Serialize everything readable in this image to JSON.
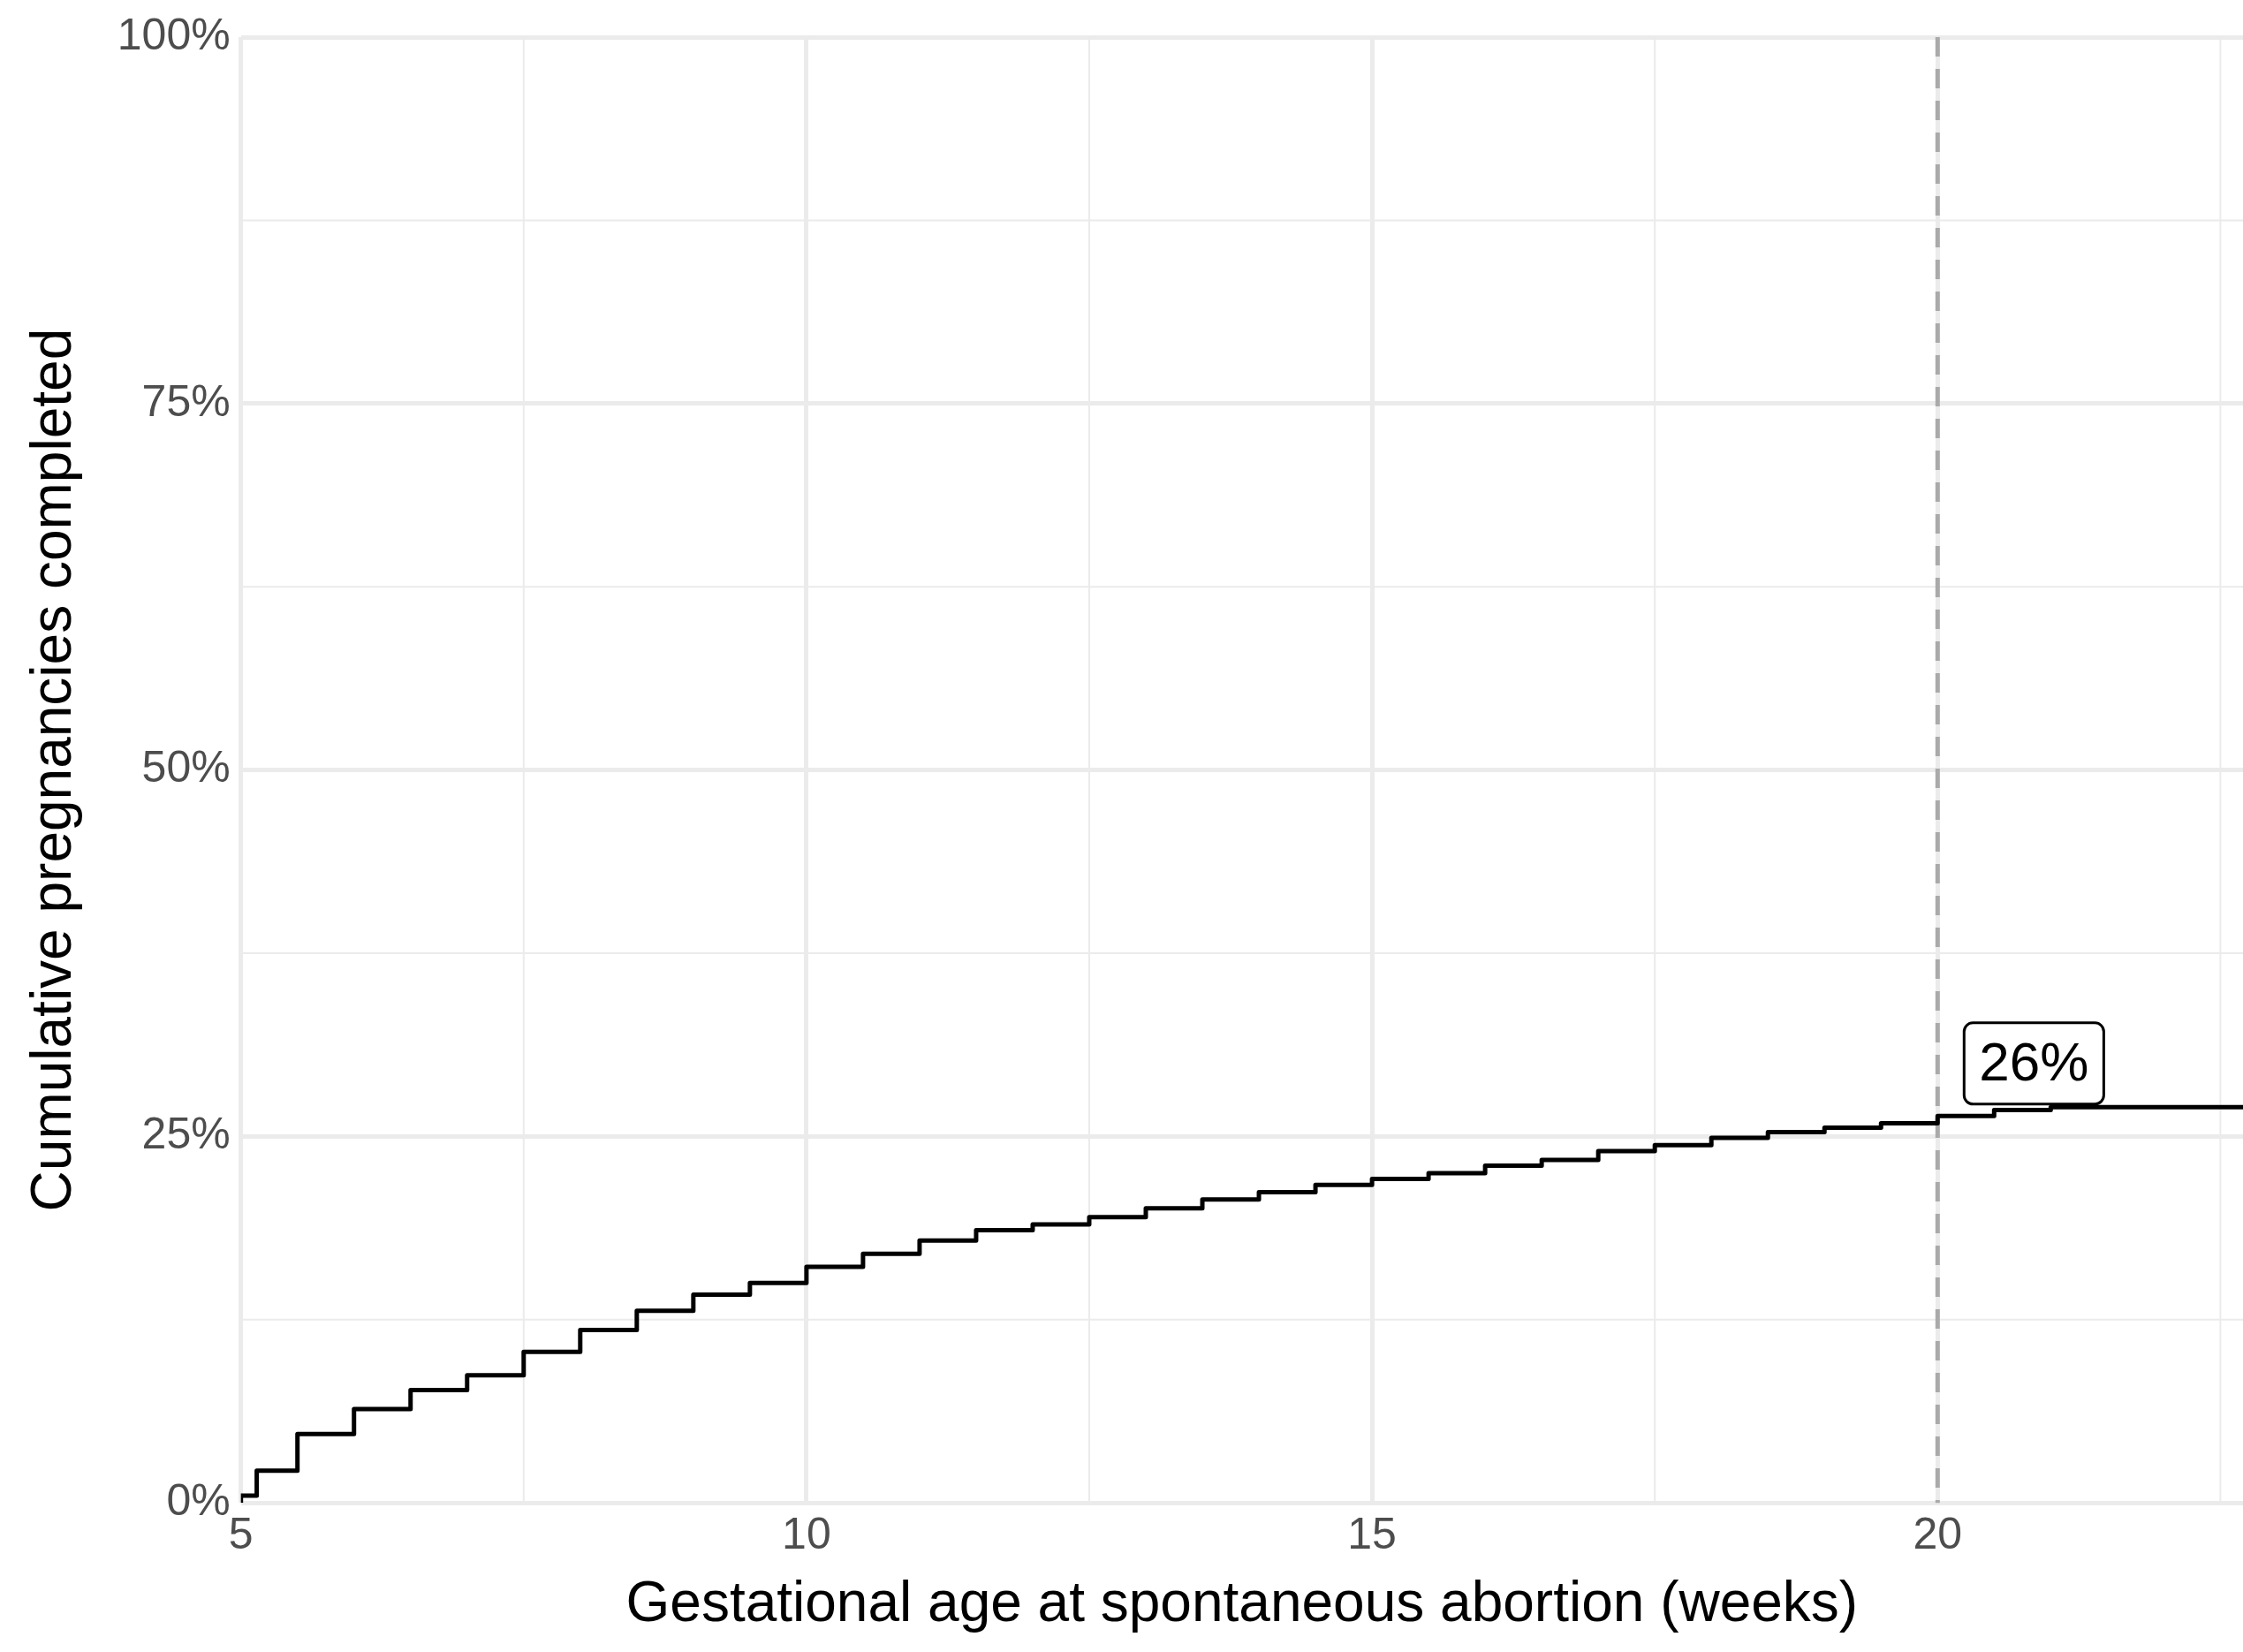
{
  "chart_data": {
    "type": "step",
    "xlabel": "Gestational age at spontaneous abortion (weeks)",
    "ylabel": "Cumulative pregnancies completed",
    "x": [
      5,
      5.14,
      5.5,
      6,
      6.5,
      7,
      7.5,
      8,
      8.5,
      9,
      9.5,
      10,
      10.5,
      11,
      11.5,
      12,
      12.5,
      13,
      13.5,
      14,
      14.5,
      15,
      15.5,
      16,
      16.5,
      17,
      17.5,
      18,
      18.5,
      19,
      19.5,
      20,
      20.5,
      21,
      21.5,
      22,
      22.7
    ],
    "series": [
      {
        "color": "#000000",
        "values": [
          0,
          0.5,
          2.2,
          4.7,
          6.4,
          7.7,
          8.7,
          10.3,
          11.8,
          13.1,
          14.2,
          15.0,
          16.1,
          17.0,
          17.9,
          18.6,
          19.0,
          19.5,
          20.1,
          20.7,
          21.2,
          21.7,
          22.1,
          22.5,
          23.0,
          23.4,
          24.0,
          24.4,
          24.9,
          25.3,
          25.6,
          25.9,
          26.4,
          26.8,
          27.0,
          27.0,
          27.0
        ]
      }
    ],
    "xlim": [
      5,
      22.7
    ],
    "ylim": [
      0,
      100
    ],
    "xticks": [
      5,
      10,
      15,
      20
    ],
    "yticks": [
      {
        "value": 0,
        "label": "0%"
      },
      {
        "value": 25,
        "label": "25%"
      },
      {
        "value": 50,
        "label": "50%"
      },
      {
        "value": 75,
        "label": "75%"
      },
      {
        "value": 100,
        "label": "100%"
      }
    ],
    "grid": true,
    "legend": false,
    "ref_lines": [
      {
        "axis": "x",
        "value": 20,
        "color": "#aaaaaa",
        "line_style": "dashed"
      }
    ],
    "annotations": [
      {
        "text": "26%",
        "x": 20,
        "y": 26
      }
    ]
  }
}
